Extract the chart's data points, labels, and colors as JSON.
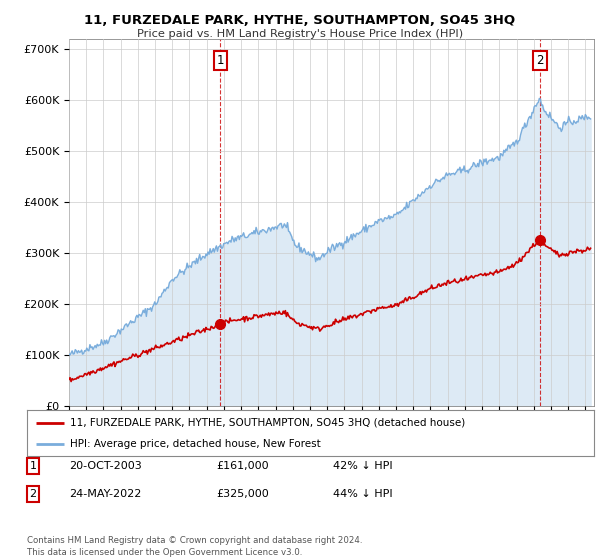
{
  "title": "11, FURZEDALE PARK, HYTHE, SOUTHAMPTON, SO45 3HQ",
  "subtitle": "Price paid vs. HM Land Registry's House Price Index (HPI)",
  "ylabel_ticks": [
    "£0",
    "£100K",
    "£200K",
    "£300K",
    "£400K",
    "£500K",
    "£600K",
    "£700K"
  ],
  "ylim": [
    0,
    720000
  ],
  "xlim_year_start": 1995,
  "xlim_year_end": 2025.5,
  "sale1_year": 2003.8,
  "sale1_price": 161000,
  "sale1_label": "1",
  "sale2_year": 2022.37,
  "sale2_price": 325000,
  "sale2_label": "2",
  "red_line_color": "#cc0000",
  "blue_line_color": "#7aaddc",
  "blue_fill_color": "#ddeaf5",
  "annotation_box_color": "#cc0000",
  "legend_label_red": "11, FURZEDALE PARK, HYTHE, SOUTHAMPTON, SO45 3HQ (detached house)",
  "legend_label_blue": "HPI: Average price, detached house, New Forest",
  "table_row1": [
    "1",
    "20-OCT-2003",
    "£161,000",
    "42% ↓ HPI"
  ],
  "table_row2": [
    "2",
    "24-MAY-2022",
    "£325,000",
    "44% ↓ HPI"
  ],
  "footer": "Contains HM Land Registry data © Crown copyright and database right 2024.\nThis data is licensed under the Open Government Licence v3.0.",
  "background_color": "#ffffff",
  "chart_bg_color": "#eef4fb"
}
